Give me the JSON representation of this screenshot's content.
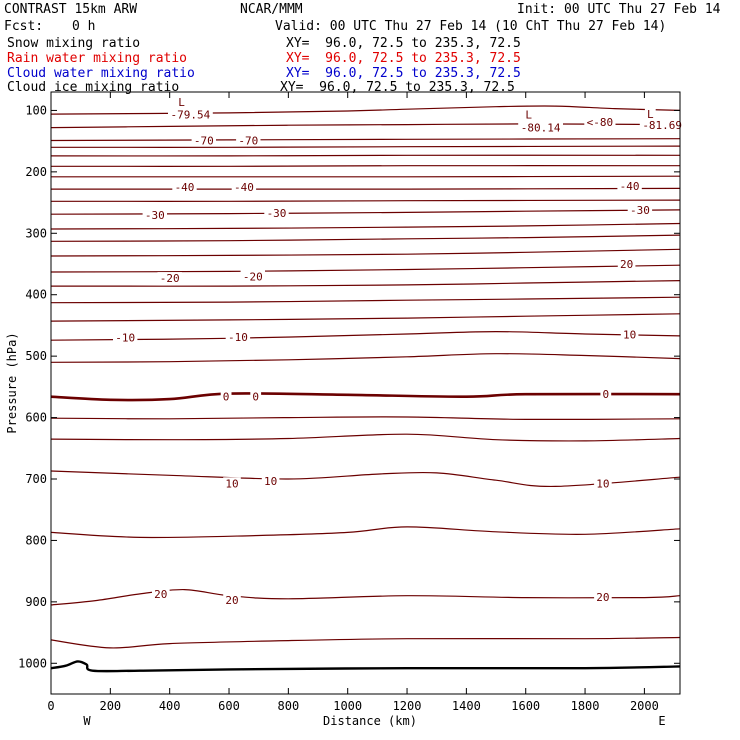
{
  "header": {
    "model": "CONTRAST 15km ARW",
    "center": "NCAR/MMM",
    "init": "Init: 00 UTC Thu 27 Feb 14",
    "fcst_label": "Fcst:",
    "fcst_value": "0 h",
    "valid": "Valid: 00 UTC Thu 27 Feb 14 (10 ChT Thu 27 Feb 14)"
  },
  "legend": [
    {
      "label": "Snow mixing ratio",
      "xy": "XY=  96.0, 72.5 to 235.3, 72.5",
      "color": "#000000"
    },
    {
      "label": "Rain water mixing ratio",
      "xy": "XY=  96.0, 72.5 to 235.3, 72.5",
      "color": "#e00000"
    },
    {
      "label": "Cloud water mixing ratio",
      "xy": "XY=  96.0, 72.5 to 235.3, 72.5",
      "color": "#0000cc"
    },
    {
      "label": "Cloud ice mixing ratio",
      "xy": "XY=  96.0, 72.5 to 235.3, 72.5",
      "color": "#000000"
    }
  ],
  "chart_data": {
    "type": "line",
    "xlabel": "Distance (km)",
    "ylabel": "Pressure (hPa)",
    "xlim": [
      0,
      2120
    ],
    "ylim": [
      1050,
      70
    ],
    "x_ticks": [
      0,
      200,
      400,
      600,
      800,
      1000,
      1200,
      1400,
      1600,
      1800,
      2000
    ],
    "y_ticks": [
      100,
      200,
      300,
      400,
      500,
      600,
      700,
      800,
      900,
      1000
    ],
    "x_end_labels": {
      "left": "W",
      "right": "E"
    },
    "contour_color": "#6b0000",
    "ground_color": "#000000",
    "contours": [
      {
        "pts": [
          [
            0,
            106
          ],
          [
            600,
            104
          ],
          [
            1000,
            101
          ],
          [
            1200,
            98
          ],
          [
            1500,
            94
          ],
          [
            1700,
            93
          ],
          [
            1900,
            97
          ],
          [
            2120,
            100
          ]
        ],
        "w": 1.2
      },
      {
        "pts": [
          [
            0,
            128
          ],
          [
            400,
            126
          ],
          [
            800,
            124
          ],
          [
            1200,
            123
          ],
          [
            1600,
            122
          ],
          [
            2120,
            123
          ]
        ],
        "w": 1.2
      },
      {
        "pts": [
          [
            0,
            149
          ],
          [
            600,
            148
          ],
          [
            1200,
            147
          ],
          [
            2120,
            146
          ]
        ],
        "w": 1.2
      },
      {
        "pts": [
          [
            0,
            160
          ],
          [
            600,
            160
          ],
          [
            1200,
            159
          ],
          [
            2120,
            158
          ]
        ],
        "w": 1.2
      },
      {
        "pts": [
          [
            0,
            174
          ],
          [
            600,
            174
          ],
          [
            1200,
            173
          ],
          [
            2120,
            173
          ]
        ],
        "w": 1.2
      },
      {
        "pts": [
          [
            0,
            191
          ],
          [
            600,
            191
          ],
          [
            1200,
            190
          ],
          [
            2120,
            190
          ]
        ],
        "w": 1.2
      },
      {
        "pts": [
          [
            0,
            208
          ],
          [
            600,
            208
          ],
          [
            1200,
            208
          ],
          [
            2120,
            207
          ]
        ],
        "w": 1.2
      },
      {
        "pts": [
          [
            0,
            228
          ],
          [
            600,
            228
          ],
          [
            1200,
            228
          ],
          [
            2120,
            227
          ]
        ],
        "w": 1.2
      },
      {
        "pts": [
          [
            0,
            248
          ],
          [
            600,
            248
          ],
          [
            1200,
            247
          ],
          [
            2120,
            246
          ]
        ],
        "w": 1.2
      },
      {
        "pts": [
          [
            0,
            269
          ],
          [
            600,
            268
          ],
          [
            1200,
            266
          ],
          [
            1600,
            264
          ],
          [
            2120,
            262
          ]
        ],
        "w": 1.2
      },
      {
        "pts": [
          [
            0,
            293
          ],
          [
            600,
            292
          ],
          [
            1200,
            290
          ],
          [
            1600,
            288
          ],
          [
            2120,
            284
          ]
        ],
        "w": 1.2
      },
      {
        "pts": [
          [
            0,
            313
          ],
          [
            600,
            312
          ],
          [
            1200,
            309
          ],
          [
            1600,
            307
          ],
          [
            2120,
            303
          ]
        ],
        "w": 1.2
      },
      {
        "pts": [
          [
            0,
            337
          ],
          [
            600,
            336
          ],
          [
            1200,
            334
          ],
          [
            1600,
            331
          ],
          [
            2120,
            326
          ]
        ],
        "w": 1.2
      },
      {
        "pts": [
          [
            0,
            363
          ],
          [
            600,
            362
          ],
          [
            1200,
            359
          ],
          [
            1600,
            356
          ],
          [
            2120,
            352
          ]
        ],
        "w": 1.2
      },
      {
        "pts": [
          [
            0,
            386
          ],
          [
            600,
            386
          ],
          [
            1200,
            384
          ],
          [
            1600,
            381
          ],
          [
            2120,
            377
          ]
        ],
        "w": 1.2
      },
      {
        "pts": [
          [
            0,
            413
          ],
          [
            600,
            412
          ],
          [
            1200,
            409
          ],
          [
            1600,
            407
          ],
          [
            2120,
            404
          ]
        ],
        "w": 1.2
      },
      {
        "pts": [
          [
            0,
            443
          ],
          [
            600,
            441
          ],
          [
            1200,
            438
          ],
          [
            1600,
            435
          ],
          [
            2120,
            431
          ]
        ],
        "w": 1.2
      },
      {
        "pts": [
          [
            0,
            474
          ],
          [
            600,
            471
          ],
          [
            1200,
            464
          ],
          [
            1500,
            460
          ],
          [
            1800,
            464
          ],
          [
            2120,
            467
          ]
        ],
        "w": 1.2
      },
      {
        "pts": [
          [
            0,
            510
          ],
          [
            400,
            509
          ],
          [
            800,
            506
          ],
          [
            1200,
            501
          ],
          [
            1500,
            496
          ],
          [
            1800,
            499
          ],
          [
            2120,
            504
          ]
        ],
        "w": 1.2
      },
      {
        "pts": [
          [
            0,
            566
          ],
          [
            200,
            571
          ],
          [
            400,
            570
          ],
          [
            600,
            561
          ],
          [
            1000,
            563
          ],
          [
            1400,
            566
          ],
          [
            1600,
            562
          ],
          [
            2120,
            562
          ]
        ],
        "w": 2.6
      },
      {
        "pts": [
          [
            0,
            601
          ],
          [
            400,
            602
          ],
          [
            800,
            600
          ],
          [
            1200,
            599
          ],
          [
            1600,
            603
          ],
          [
            2120,
            602
          ]
        ],
        "w": 1.2
      },
      {
        "pts": [
          [
            0,
            635
          ],
          [
            400,
            636
          ],
          [
            800,
            634
          ],
          [
            1200,
            627
          ],
          [
            1500,
            636
          ],
          [
            1800,
            638
          ],
          [
            2120,
            634
          ]
        ],
        "w": 1.2
      },
      {
        "pts": [
          [
            0,
            687
          ],
          [
            400,
            694
          ],
          [
            800,
            700
          ],
          [
            1100,
            692
          ],
          [
            1300,
            690
          ],
          [
            1500,
            702
          ],
          [
            1700,
            712
          ],
          [
            2120,
            697
          ]
        ],
        "w": 1.2
      },
      {
        "pts": [
          [
            0,
            787
          ],
          [
            300,
            795
          ],
          [
            700,
            792
          ],
          [
            1000,
            787
          ],
          [
            1200,
            778
          ],
          [
            1500,
            786
          ],
          [
            1800,
            790
          ],
          [
            2120,
            781
          ]
        ],
        "w": 1.2
      },
      {
        "pts": [
          [
            0,
            905
          ],
          [
            150,
            898
          ],
          [
            300,
            887
          ],
          [
            450,
            880
          ],
          [
            600,
            890
          ],
          [
            800,
            895
          ],
          [
            1200,
            890
          ],
          [
            1600,
            893
          ],
          [
            2000,
            893
          ],
          [
            2120,
            890
          ]
        ],
        "w": 1.2
      },
      {
        "pts": [
          [
            0,
            962
          ],
          [
            200,
            975
          ],
          [
            400,
            968
          ],
          [
            800,
            963
          ],
          [
            1200,
            960
          ],
          [
            1800,
            960
          ],
          [
            2120,
            958
          ]
        ],
        "w": 1.2
      }
    ],
    "ground": {
      "pts": [
        [
          0,
          1008
        ],
        [
          50,
          1004
        ],
        [
          90,
          997
        ],
        [
          120,
          1002
        ],
        [
          140,
          1012
        ],
        [
          300,
          1012
        ],
        [
          600,
          1010
        ],
        [
          1200,
          1008
        ],
        [
          1800,
          1008
        ],
        [
          2120,
          1005
        ]
      ]
    },
    "labels": [
      {
        "text": "L",
        "x": 440,
        "p": 86
      },
      {
        "text": "-79.54",
        "x": 470,
        "p": 107
      },
      {
        "text": "L",
        "x": 1610,
        "p": 107
      },
      {
        "text": "-80.14",
        "x": 1650,
        "p": 128
      },
      {
        "text": "<-80",
        "x": 1850,
        "p": 119
      },
      {
        "text": "L",
        "x": 2020,
        "p": 106
      },
      {
        "text": "-81.69",
        "x": 2060,
        "p": 124
      },
      {
        "text": "-70",
        "x": 515,
        "p": 149
      },
      {
        "text": "-70",
        "x": 665,
        "p": 149
      },
      {
        "text": "-40",
        "x": 450,
        "p": 225
      },
      {
        "text": "-40",
        "x": 650,
        "p": 225
      },
      {
        "text": "-40",
        "x": 1950,
        "p": 223
      },
      {
        "text": "-30",
        "x": 350,
        "p": 270
      },
      {
        "text": "-30",
        "x": 760,
        "p": 267
      },
      {
        "text": "-30",
        "x": 1985,
        "p": 262
      },
      {
        "text": "-20",
        "x": 400,
        "p": 373
      },
      {
        "text": "-20",
        "x": 680,
        "p": 370
      },
      {
        "text": "20",
        "x": 1940,
        "p": 350
      },
      {
        "text": "-10",
        "x": 250,
        "p": 470
      },
      {
        "text": "-10",
        "x": 630,
        "p": 469
      },
      {
        "text": "10",
        "x": 1950,
        "p": 465
      },
      {
        "text": "0",
        "x": 590,
        "p": 566
      },
      {
        "text": "0",
        "x": 690,
        "p": 566
      },
      {
        "text": "0",
        "x": 1870,
        "p": 562
      },
      {
        "text": "10",
        "x": 610,
        "p": 707
      },
      {
        "text": "10",
        "x": 740,
        "p": 703
      },
      {
        "text": "10",
        "x": 1860,
        "p": 707
      },
      {
        "text": "20",
        "x": 370,
        "p": 887
      },
      {
        "text": "20",
        "x": 610,
        "p": 897
      },
      {
        "text": "20",
        "x": 1860,
        "p": 892
      }
    ]
  }
}
